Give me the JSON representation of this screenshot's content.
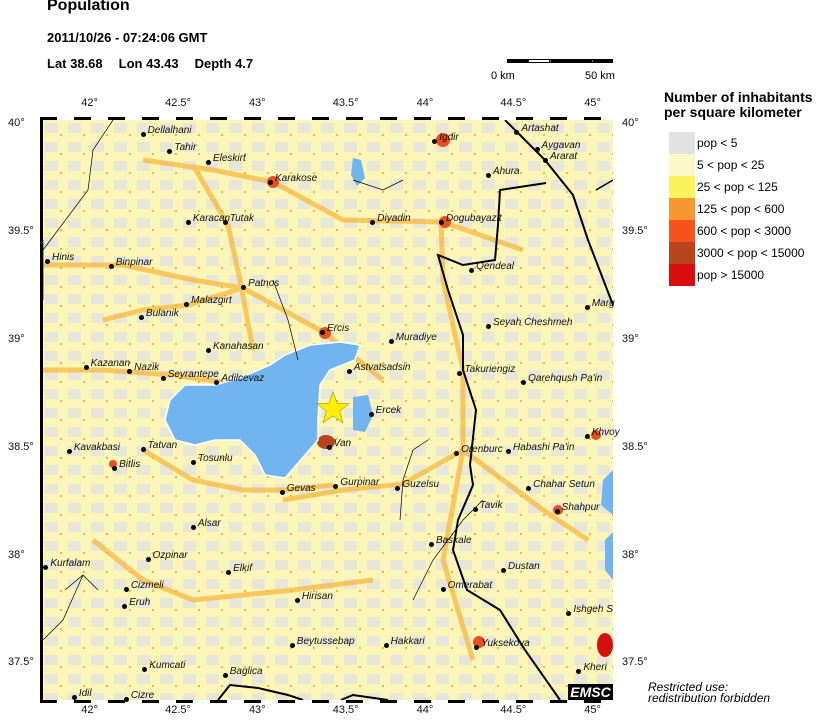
{
  "header": {
    "title": "Population",
    "datetime": "2011/10/26 - 07:24:06 GMT",
    "lat": "Lat 38.68",
    "lon": "Lon  43.43",
    "depth": "Depth  4.7"
  },
  "scale": {
    "left": "0 km",
    "right": "50 km"
  },
  "axes": {
    "lon_ticks": [
      {
        "value": 42,
        "label": "42°"
      },
      {
        "value": 42.5,
        "label": "42.5°"
      },
      {
        "value": 43,
        "label": "43°"
      },
      {
        "value": 43.5,
        "label": "43.5°"
      },
      {
        "value": 44,
        "label": "44°"
      },
      {
        "value": 44.5,
        "label": "44.5°"
      },
      {
        "value": 45,
        "label": "45°"
      }
    ],
    "lat_ticks": [
      {
        "value": 40,
        "label": "40°"
      },
      {
        "value": 39.5,
        "label": "39.5°"
      },
      {
        "value": 39,
        "label": "39°"
      },
      {
        "value": 38.5,
        "label": "38.5°"
      },
      {
        "value": 38,
        "label": "38°"
      },
      {
        "value": 37.5,
        "label": "37.5°"
      }
    ],
    "lon_range": [
      41.7,
      45.1
    ],
    "lat_range": [
      37.33,
      40.02
    ]
  },
  "epicenter": {
    "lat": 38.68,
    "lon": 43.43,
    "color": "#ffee00"
  },
  "legend": {
    "title_line1": "Number of inhabitants",
    "title_line2": "per square kilometer",
    "items": [
      {
        "label": "pop < 5",
        "color": "#e2e2e2"
      },
      {
        "label": "5 < pop < 25",
        "color": "#fbf7c6"
      },
      {
        "label": "25 < pop < 125",
        "color": "#f9f35e"
      },
      {
        "label": "125 < pop < 600",
        "color": "#f7972f"
      },
      {
        "label": "600 < pop < 3000",
        "color": "#f5531a"
      },
      {
        "label": "3000 < pop < 15000",
        "color": "#b9441b"
      },
      {
        "label": "pop > 15000",
        "color": "#d80e0e"
      }
    ]
  },
  "colors": {
    "lake": "#70b4f0",
    "land": "#fbf5b8"
  },
  "cities": [
    {
      "name": "Dellalhani",
      "lon": 42.3,
      "lat": 39.95
    },
    {
      "name": "Tahir",
      "lon": 42.46,
      "lat": 39.87
    },
    {
      "name": "Eleskirt",
      "lon": 42.69,
      "lat": 39.82
    },
    {
      "name": "Karakose",
      "lon": 43.06,
      "lat": 39.73
    },
    {
      "name": "Karacan",
      "lon": 42.57,
      "lat": 39.54
    },
    {
      "name": "Tutak",
      "lon": 42.79,
      "lat": 39.54
    },
    {
      "name": "Hinis",
      "lon": 41.73,
      "lat": 39.36
    },
    {
      "name": "Binpinar",
      "lon": 42.11,
      "lat": 39.34
    },
    {
      "name": "Patnos",
      "lon": 42.9,
      "lat": 39.24
    },
    {
      "name": "Malazgirt",
      "lon": 42.56,
      "lat": 39.16
    },
    {
      "name": "Bulanik",
      "lon": 42.29,
      "lat": 39.1
    },
    {
      "name": "Ercis",
      "lon": 43.37,
      "lat": 39.03
    },
    {
      "name": "Kanahasan",
      "lon": 42.69,
      "lat": 38.95
    },
    {
      "name": "Muradiye",
      "lon": 43.78,
      "lat": 38.99
    },
    {
      "name": "Kazanan",
      "lon": 41.96,
      "lat": 38.87
    },
    {
      "name": "Nazik",
      "lon": 42.22,
      "lat": 38.85
    },
    {
      "name": "Seyrantepe",
      "lon": 42.42,
      "lat": 38.82
    },
    {
      "name": "Adilcevaz",
      "lon": 42.74,
      "lat": 38.8
    },
    {
      "name": "Astvatsadsin",
      "lon": 43.53,
      "lat": 38.85
    },
    {
      "name": "Takuriengiz",
      "lon": 44.19,
      "lat": 38.84
    },
    {
      "name": "Qarehqush Pa'in",
      "lon": 44.57,
      "lat": 38.8
    },
    {
      "name": "Ercek",
      "lon": 43.66,
      "lat": 38.65
    },
    {
      "name": "Van",
      "lon": 43.41,
      "lat": 38.5
    },
    {
      "name": "Kavakbasi",
      "lon": 41.86,
      "lat": 38.48
    },
    {
      "name": "Tatvan",
      "lon": 42.3,
      "lat": 38.49
    },
    {
      "name": "Bitlis",
      "lon": 42.13,
      "lat": 38.4
    },
    {
      "name": "Tosunlu",
      "lon": 42.6,
      "lat": 38.43
    },
    {
      "name": "Gevas",
      "lon": 43.13,
      "lat": 38.29
    },
    {
      "name": "Gurpinar",
      "lon": 43.45,
      "lat": 38.32
    },
    {
      "name": "Guzelsu",
      "lon": 43.82,
      "lat": 38.31
    },
    {
      "name": "Orenburc",
      "lon": 44.17,
      "lat": 38.47
    },
    {
      "name": "Habashi Pa'in",
      "lon": 44.48,
      "lat": 38.48
    },
    {
      "name": "Khvoy",
      "lon": 44.95,
      "lat": 38.55
    },
    {
      "name": "Chahar Setun",
      "lon": 44.6,
      "lat": 38.31
    },
    {
      "name": "Tavik",
      "lon": 44.28,
      "lat": 38.21
    },
    {
      "name": "Shahpur",
      "lon": 44.77,
      "lat": 38.2
    },
    {
      "name": "Alsar",
      "lon": 42.6,
      "lat": 38.13
    },
    {
      "name": "Baskale",
      "lon": 44.02,
      "lat": 38.05
    },
    {
      "name": "Ozpinar",
      "lon": 42.33,
      "lat": 37.98
    },
    {
      "name": "Kurfalam",
      "lon": 41.72,
      "lat": 37.94
    },
    {
      "name": "Elkif",
      "lon": 42.81,
      "lat": 37.92
    },
    {
      "name": "Dustan",
      "lon": 44.45,
      "lat": 37.93
    },
    {
      "name": "Omerabat",
      "lon": 44.09,
      "lat": 37.84
    },
    {
      "name": "Cizmeli",
      "lon": 42.2,
      "lat": 37.84
    },
    {
      "name": "Eruh",
      "lon": 42.19,
      "lat": 37.76
    },
    {
      "name": "Hirisan",
      "lon": 43.22,
      "lat": 37.79
    },
    {
      "name": "Ishgeh S",
      "lon": 44.84,
      "lat": 37.73
    },
    {
      "name": "Beytussebap",
      "lon": 43.19,
      "lat": 37.58
    },
    {
      "name": "Hakkari",
      "lon": 43.75,
      "lat": 37.58
    },
    {
      "name": "Yuksekova",
      "lon": 44.29,
      "lat": 37.57
    },
    {
      "name": "Kumcati",
      "lon": 42.31,
      "lat": 37.47
    },
    {
      "name": "Baglica",
      "lon": 42.79,
      "lat": 37.44
    },
    {
      "name": "Kheri",
      "lon": 44.9,
      "lat": 37.46
    },
    {
      "name": "Idil",
      "lon": 41.89,
      "lat": 37.34
    },
    {
      "name": "Cizre",
      "lon": 42.2,
      "lat": 37.33
    },
    {
      "name": "Igdir",
      "lon": 44.04,
      "lat": 39.92
    },
    {
      "name": "Artashat",
      "lon": 44.53,
      "lat": 39.96
    },
    {
      "name": "Aygavan",
      "lon": 44.65,
      "lat": 39.88
    },
    {
      "name": "Ararat",
      "lon": 44.7,
      "lat": 39.83
    },
    {
      "name": "Ahura",
      "lon": 44.36,
      "lat": 39.76
    },
    {
      "name": "Diyadin",
      "lon": 43.67,
      "lat": 39.54
    },
    {
      "name": "Dogubayazit",
      "lon": 44.08,
      "lat": 39.54
    },
    {
      "name": "Qendeal",
      "lon": 44.26,
      "lat": 39.32
    },
    {
      "name": "Marg",
      "lon": 44.95,
      "lat": 39.15
    },
    {
      "name": "Seyah Cheshmeh",
      "lon": 44.36,
      "lat": 39.06
    }
  ],
  "watermark": "EMSC",
  "notice_line1": "Restricted use:",
  "notice_line2": "redistribution forbidden"
}
